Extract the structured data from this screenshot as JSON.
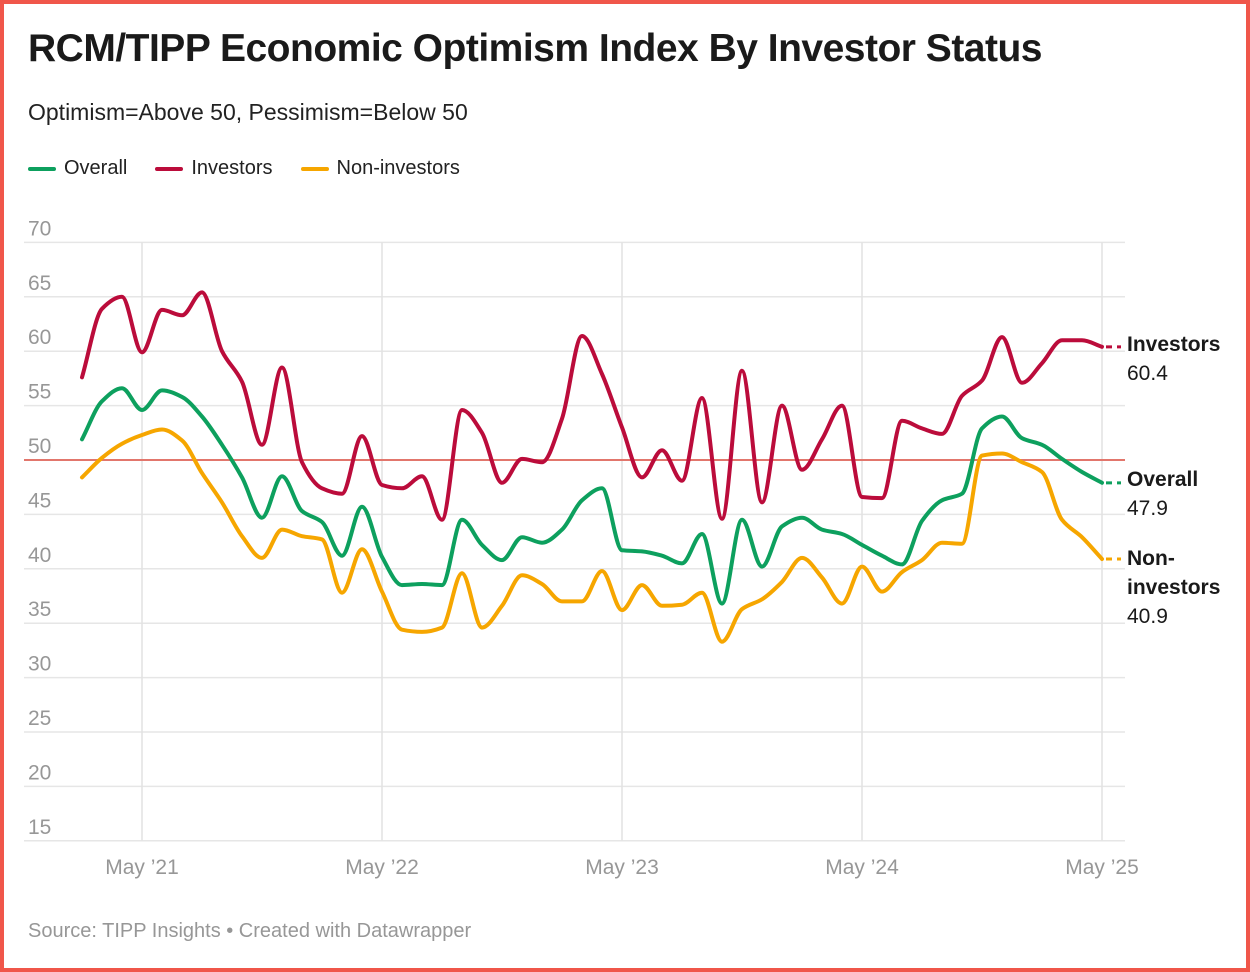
{
  "frame": {
    "border_color": "#f0564a",
    "background": "#ffffff"
  },
  "header": {
    "title": "RCM/TIPP Economic Optimism Index By Investor Status",
    "subtitle": "Optimism=Above 50, Pessimism=Below 50"
  },
  "legend": {
    "items": [
      {
        "id": "overall",
        "label": "Overall",
        "color": "#0da05e"
      },
      {
        "id": "investors",
        "label": "Investors",
        "color": "#bb0c3b"
      },
      {
        "id": "non_investors",
        "label": "Non-investors",
        "color": "#f6a600"
      }
    ]
  },
  "chart_data": {
    "type": "line",
    "title": "RCM/TIPP Economic Optimism Index By Investor Status",
    "subtitle": "Optimism=Above 50, Pessimism=Below 50",
    "x": [
      "Feb 2021",
      "Mar 2021",
      "Apr 2021",
      "May 2021",
      "Jun 2021",
      "Jul 2021",
      "Aug 2021",
      "Sep 2021",
      "Oct 2021",
      "Nov 2021",
      "Dec 2021",
      "Jan 2022",
      "Feb 2022",
      "Mar 2022",
      "Apr 2022",
      "May 2022",
      "Jun 2022",
      "Jul 2022",
      "Aug 2022",
      "Sep 2022",
      "Oct 2022",
      "Nov 2022",
      "Dec 2022",
      "Jan 2023",
      "Feb 2023",
      "Mar 2023",
      "Apr 2023",
      "May 2023",
      "Jun 2023",
      "Jul 2023",
      "Aug 2023",
      "Sep 2023",
      "Oct 2023",
      "Nov 2023",
      "Dec 2023",
      "Jan 2024",
      "Feb 2024",
      "Mar 2024",
      "Apr 2024",
      "May 2024",
      "Jun 2024",
      "Jul 2024",
      "Aug 2024",
      "Sep 2024",
      "Oct 2024",
      "Nov 2024",
      "Dec 2024",
      "Jan 2025",
      "Feb 2025",
      "Mar 2025",
      "Apr 2025",
      "May 2025"
    ],
    "series": [
      {
        "name": "Overall",
        "color": "#0da05e",
        "values": [
          51.9,
          55.4,
          56.6,
          54.6,
          56.4,
          55.8,
          54.0,
          51.4,
          48.4,
          44.7,
          48.5,
          45.3,
          44.3,
          41.2,
          45.7,
          41.1,
          38.5,
          38.6,
          38.5,
          44.5,
          42.2,
          40.8,
          42.9,
          42.4,
          43.6,
          46.3,
          47.4,
          41.7,
          41.6,
          41.2,
          40.5,
          43.2,
          36.8,
          44.5,
          40.2,
          43.9,
          44.7,
          43.6,
          43.2,
          42.2,
          41.2,
          40.4,
          44.4,
          46.3,
          46.9,
          52.9,
          54.0,
          52.0,
          51.4,
          50.1,
          48.9,
          47.9
        ]
      },
      {
        "name": "Investors",
        "color": "#bb0c3b",
        "values": [
          57.6,
          63.9,
          65.0,
          59.9,
          63.8,
          63.3,
          65.4,
          60.0,
          57.2,
          51.4,
          58.5,
          49.8,
          47.4,
          46.9,
          52.2,
          47.7,
          47.4,
          48.5,
          44.5,
          54.6,
          52.5,
          47.9,
          50.1,
          49.8,
          53.8,
          61.4,
          57.9,
          53.0,
          48.4,
          50.9,
          48.1,
          55.7,
          44.6,
          58.2,
          46.1,
          55.0,
          49.1,
          51.9,
          55.0,
          46.6,
          46.5,
          53.6,
          52.9,
          52.4,
          55.9,
          57.3,
          61.3,
          57.1,
          58.9,
          61.0,
          61.0,
          60.4
        ]
      },
      {
        "name": "Non-investors",
        "color": "#f6a600",
        "values": [
          48.4,
          50.2,
          51.5,
          52.3,
          52.8,
          51.8,
          48.8,
          46.1,
          43.0,
          41.0,
          43.6,
          43.0,
          42.7,
          37.8,
          41.8,
          37.9,
          34.4,
          34.2,
          34.6,
          39.6,
          34.6,
          36.6,
          39.4,
          38.6,
          37.0,
          37.0,
          39.8,
          36.2,
          38.5,
          36.6,
          36.7,
          37.8,
          33.3,
          36.3,
          37.2,
          38.8,
          41.0,
          39.2,
          36.8,
          40.2,
          37.9,
          39.7,
          40.8,
          42.4,
          42.3,
          50.4,
          50.6,
          49.8,
          48.9,
          44.5,
          42.9,
          40.9
        ]
      }
    ],
    "ylim": [
      15,
      70
    ],
    "yticks": [
      70,
      65,
      60,
      55,
      50,
      45,
      40,
      35,
      30,
      25,
      20,
      15
    ],
    "xticks": [
      {
        "index": 3,
        "label": "May ’21"
      },
      {
        "index": 15,
        "label": "May ’22"
      },
      {
        "index": 27,
        "label": "May ’23"
      },
      {
        "index": 39,
        "label": "May ’24"
      },
      {
        "index": 51,
        "label": "May ’25"
      }
    ],
    "reference_line": {
      "value": 50,
      "color": "#e2766c"
    },
    "grid": "on",
    "legend_position": "top",
    "end_labels": [
      {
        "series": "investors",
        "label": "Investors",
        "value": "60.4",
        "value_num": 60.4,
        "color": "#bb0c3b"
      },
      {
        "series": "overall",
        "label": "Overall",
        "value": "47.9",
        "value_num": 47.9,
        "color": "#0da05e"
      },
      {
        "series": "non_investors",
        "label": "Non-investors",
        "value": "40.9",
        "value_num": 40.9,
        "color": "#f6a600"
      }
    ]
  },
  "axis_colors": {
    "tick_text": "#979797",
    "grid": "#e6e6e6"
  },
  "footer": {
    "source": "Source: TIPP Insights • Created with Datawrapper"
  }
}
